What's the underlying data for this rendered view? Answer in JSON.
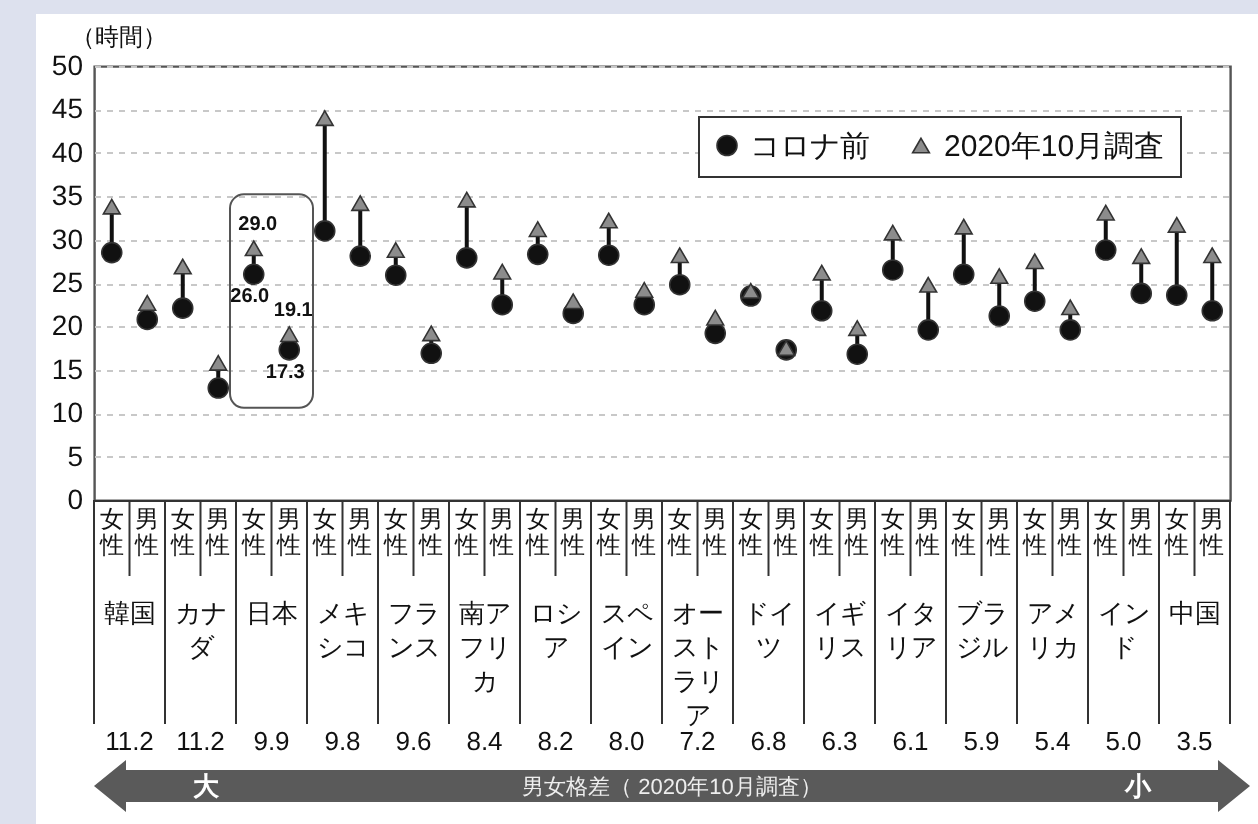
{
  "chart_data": {
    "type": "scatter",
    "ylabel": "（時間）",
    "categories": [
      "女性",
      "男性",
      "女性",
      "男性",
      "女性",
      "男性",
      "女性",
      "男性",
      "女性",
      "男性",
      "女性",
      "男性",
      "女性",
      "男性",
      "女性",
      "男性",
      "女性",
      "男性",
      "女性",
      "男性",
      "女性",
      "男性",
      "女性",
      "男性",
      "女性",
      "男性",
      "女性",
      "男性",
      "女性",
      "男性",
      "女性",
      "男性"
    ],
    "series": [
      {
        "name": "コロナ前",
        "color": "#111111",
        "marker": "circle",
        "values": [
          28.5,
          20.8,
          22.1,
          12.9,
          26.0,
          17.3,
          31.0,
          28.1,
          25.9,
          16.9,
          27.9,
          22.5,
          28.3,
          21.5,
          28.2,
          22.5,
          24.8,
          19.2,
          23.5,
          17.3,
          21.8,
          16.8,
          26.5,
          19.6,
          26.0,
          21.2,
          22.9,
          19.6,
          28.8,
          23.8,
          23.6,
          21.8
        ],
        "value_labels": [
          null,
          null,
          null,
          null,
          "26.0",
          "17.3",
          null,
          null,
          null,
          null,
          null,
          null,
          null,
          null,
          null,
          null,
          null,
          null,
          null,
          null,
          null,
          null,
          null,
          null,
          null,
          null,
          null,
          null,
          null,
          null,
          null,
          null
        ]
      },
      {
        "name": "2020年10月調査",
        "color": "#8c8c8c",
        "marker": "triangle",
        "values": [
          33.8,
          22.7,
          26.9,
          15.8,
          29.0,
          19.1,
          44.0,
          34.2,
          28.8,
          19.2,
          34.6,
          26.3,
          31.2,
          22.9,
          32.2,
          24.2,
          28.2,
          21.0,
          24.1,
          17.5,
          26.2,
          19.8,
          30.8,
          24.8,
          31.5,
          25.8,
          27.5,
          22.2,
          33.1,
          28.1,
          31.7,
          28.2
        ],
        "value_labels": [
          null,
          null,
          null,
          null,
          "29.0",
          "19.1",
          null,
          null,
          null,
          null,
          null,
          null,
          null,
          null,
          null,
          null,
          null,
          null,
          null,
          null,
          null,
          null,
          null,
          null,
          null,
          null,
          null,
          null,
          null,
          null,
          null,
          null
        ]
      }
    ],
    "ylim": [
      0,
      50
    ],
    "yticks": [
      0,
      5,
      10,
      15,
      20,
      25,
      30,
      35,
      40,
      45,
      50
    ],
    "grid": "y",
    "legend": "top right",
    "annotations": [
      "韓国",
      "カナダ",
      "日本",
      "メキシコ",
      "フランス",
      "南アフリカ",
      "ロシア",
      "スペイン",
      "オーストラリア",
      "ドイツ",
      "イギリス",
      "イタリア",
      "ブラジル",
      "アメリカ",
      "インド",
      "中国",
      "11.2",
      "11.2",
      "9.9",
      "9.8",
      "9.6",
      "8.4",
      "8.2",
      "8.0",
      "7.2",
      "6.8",
      "6.3",
      "6.1",
      "5.9",
      "5.4",
      "5.0",
      "3.5",
      "男女格差（ 2020年10月調査）",
      "大",
      "小"
    ]
  }
}
